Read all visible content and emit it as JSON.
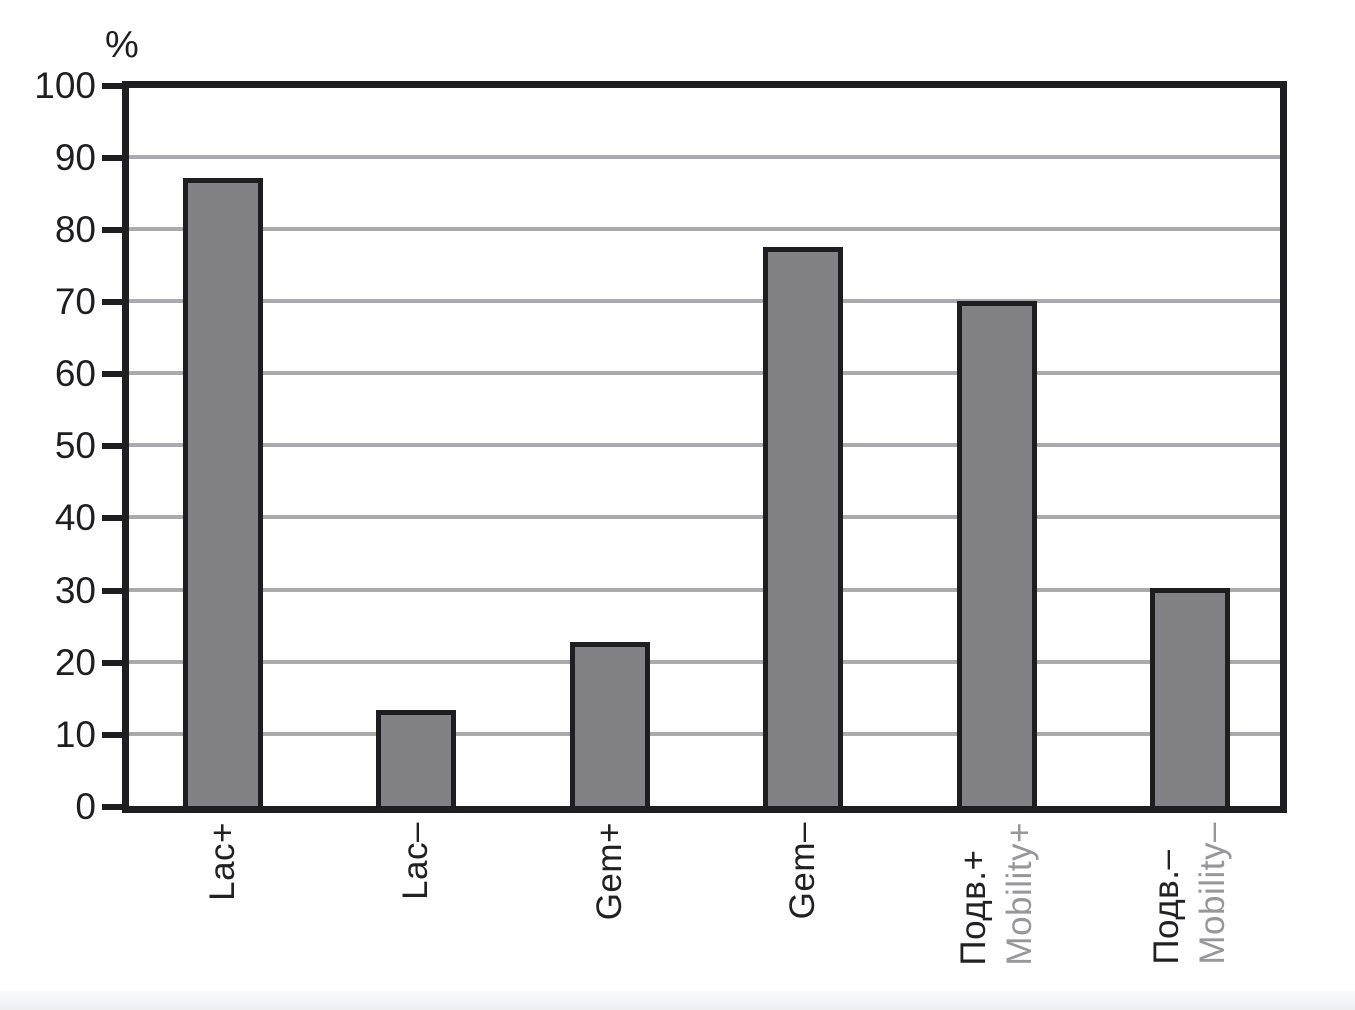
{
  "chart_data": {
    "type": "bar",
    "title": "",
    "ylabel": "%",
    "xlabel": "",
    "ylim": [
      0,
      100
    ],
    "yticks": [
      0,
      10,
      20,
      30,
      40,
      50,
      60,
      70,
      80,
      90,
      100
    ],
    "grid": "horizontal gridlines every 10, light gray, top 100 line drawn as thick black frame edge",
    "legend_position": "none",
    "categories": [
      {
        "id": "lac-plus",
        "label": "Lac+"
      },
      {
        "id": "lac-minus",
        "label": "Lac–"
      },
      {
        "id": "gem-plus",
        "label": "Gem+"
      },
      {
        "id": "gem-minus",
        "label": "Gem–"
      },
      {
        "id": "mobility-plus",
        "label": "Подв.+",
        "label2": "Mobility+"
      },
      {
        "id": "mobility-minus",
        "label": "Подв.–",
        "label2": "Mobility–"
      }
    ],
    "values": [
      87,
      13.3,
      22.8,
      77.5,
      70,
      30.2
    ],
    "colors": {
      "bar_fill": "#818186",
      "bar_border": "#1e1e21",
      "axis_frame": "#1e1e21",
      "gridline": "#aaaaae",
      "tick_label": "#1e1e21",
      "category_label_primary": "#212124",
      "category_label_secondary": "#97979b",
      "background": "#ffffff",
      "bottom_strip": "#eeeff2"
    }
  }
}
